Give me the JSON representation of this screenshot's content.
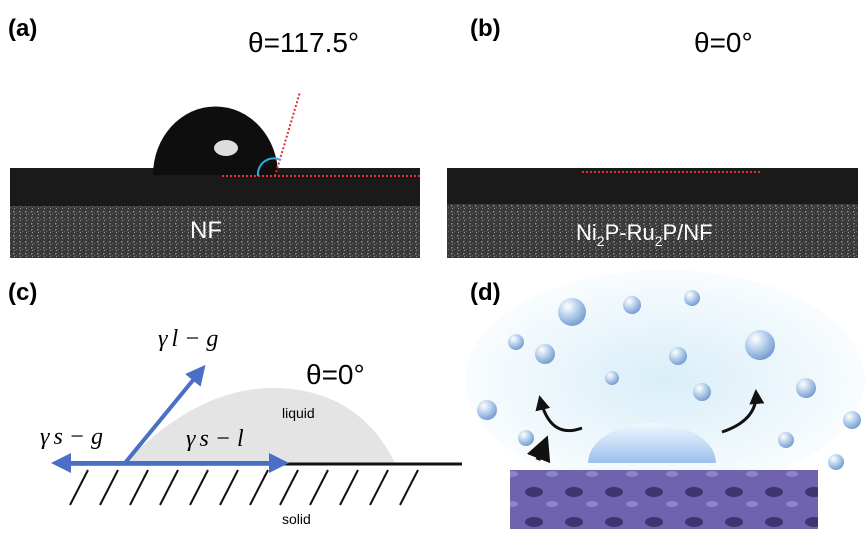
{
  "panels": [
    {
      "label": "(a)",
      "angle": "θ=117.5°",
      "sample": "NF"
    },
    {
      "label": "(b)",
      "angle": "θ=0°",
      "sample_parts": [
        "Ni",
        "2",
        "P-Ru",
        "2",
        "P/NF"
      ]
    },
    {
      "label": "(c)",
      "angle": "θ=0°",
      "liquid": "liquid",
      "solid": "solid",
      "gamma": "γ",
      "lg": "l − g",
      "sg": "s − g",
      "sl": "s − l"
    },
    {
      "label": "(d)"
    }
  ]
}
